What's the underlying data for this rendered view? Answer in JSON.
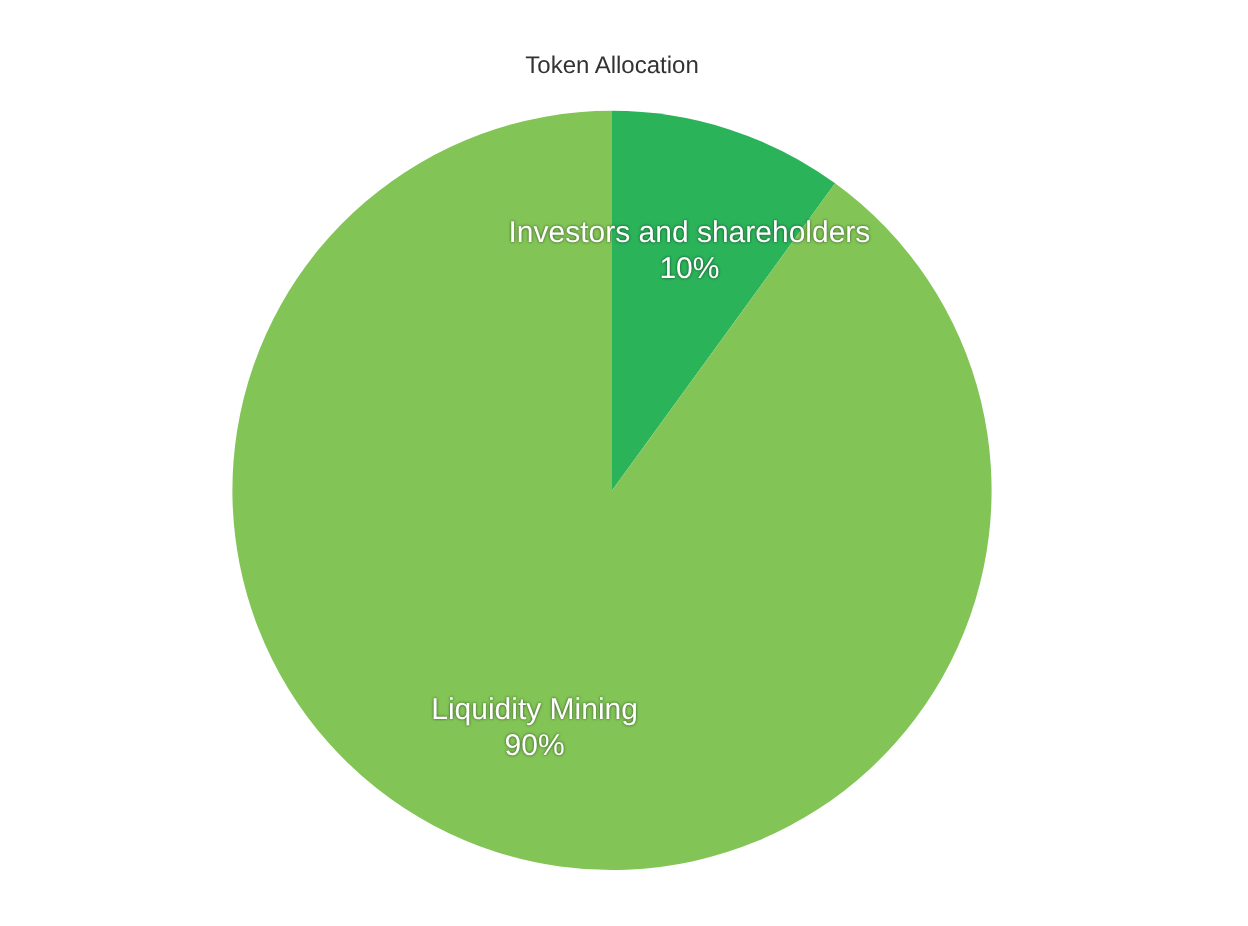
{
  "chart_data": {
    "type": "pie",
    "title": "Token Allocation",
    "categories": [
      "Investors and shareholders",
      "Liquidity Mining"
    ],
    "values": [
      10,
      90
    ],
    "colors": [
      "#2bb35a",
      "#82c556"
    ],
    "value_labels": [
      "10%",
      "90%"
    ],
    "legend": false
  }
}
